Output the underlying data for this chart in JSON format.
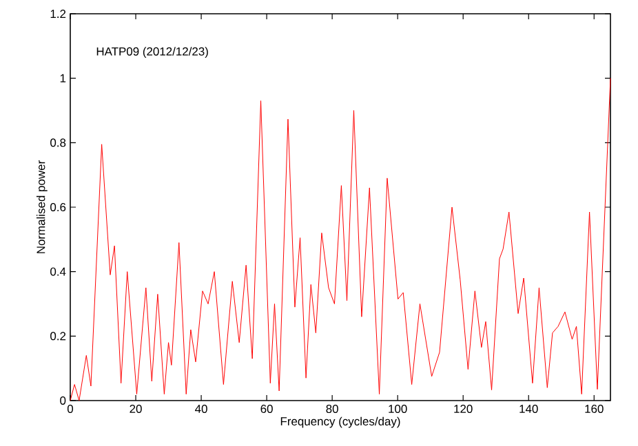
{
  "chart_data": {
    "type": "line",
    "xlabel": "Frequency (cycles/day)",
    "ylabel": "Normalised power",
    "annotations": [
      "HATP09 (2012/12/23)"
    ],
    "x": [
      0,
      1.3,
      2.7,
      4.9,
      6.3,
      9.6,
      12.2,
      13.5,
      15.5,
      17.4,
      20.3,
      23.1,
      24.9,
      26.7,
      28.7,
      30,
      30.9,
      33.2,
      35.4,
      36.8,
      38.3,
      40.4,
      42.1,
      44,
      46.8,
      49.5,
      51.6,
      53.7,
      55.6,
      58.2,
      61.1,
      62.4,
      63.8,
      66.5,
      68.6,
      70.2,
      72,
      73.5,
      75,
      76.8,
      78.9,
      80.7,
      82.8,
      84.5,
      86.6,
      89,
      91.4,
      94.4,
      96.8,
      100.1,
      101.7,
      104.3,
      106.8,
      110.4,
      112.8,
      116.6,
      119.1,
      121.5,
      123.6,
      125.6,
      126.9,
      128.7,
      131.1,
      132.2,
      134,
      136.8,
      138.5,
      141.2,
      143.2,
      145.7,
      147.3,
      149,
      151.1,
      153.3,
      154.6,
      156.2,
      158.6,
      161,
      165
    ],
    "series": [
      {
        "color": "#ff0000",
        "values": [
          0,
          0.05,
          0,
          0.14,
          0.045,
          0.795,
          0.39,
          0.48,
          0.054,
          0.4,
          0.02,
          0.35,
          0.06,
          0.33,
          0.02,
          0.18,
          0.11,
          0.49,
          0.02,
          0.22,
          0.12,
          0.34,
          0.3,
          0.4,
          0.05,
          0.37,
          0.18,
          0.42,
          0.13,
          0.93,
          0.054,
          0.3,
          0.03,
          0.873,
          0.29,
          0.505,
          0.07,
          0.36,
          0.21,
          0.52,
          0.35,
          0.3,
          0.667,
          0.31,
          0.9,
          0.26,
          0.66,
          0.02,
          0.69,
          0.315,
          0.335,
          0.05,
          0.3,
          0.075,
          0.15,
          0.6,
          0.375,
          0.097,
          0.34,
          0.165,
          0.245,
          0.033,
          0.44,
          0.47,
          0.585,
          0.27,
          0.38,
          0.054,
          0.35,
          0.04,
          0.21,
          0.23,
          0.275,
          0.19,
          0.23,
          0.02,
          0.585,
          0.035,
          1.0
        ]
      }
    ],
    "xlim": [
      0,
      165
    ],
    "ylim": [
      0,
      1.2
    ],
    "xticks": [
      0,
      20,
      40,
      60,
      80,
      100,
      120,
      140,
      160
    ],
    "yticks": [
      0,
      0.2,
      0.4,
      0.6,
      0.8,
      1,
      1.2
    ],
    "marker": "none",
    "line_style": "solid"
  }
}
